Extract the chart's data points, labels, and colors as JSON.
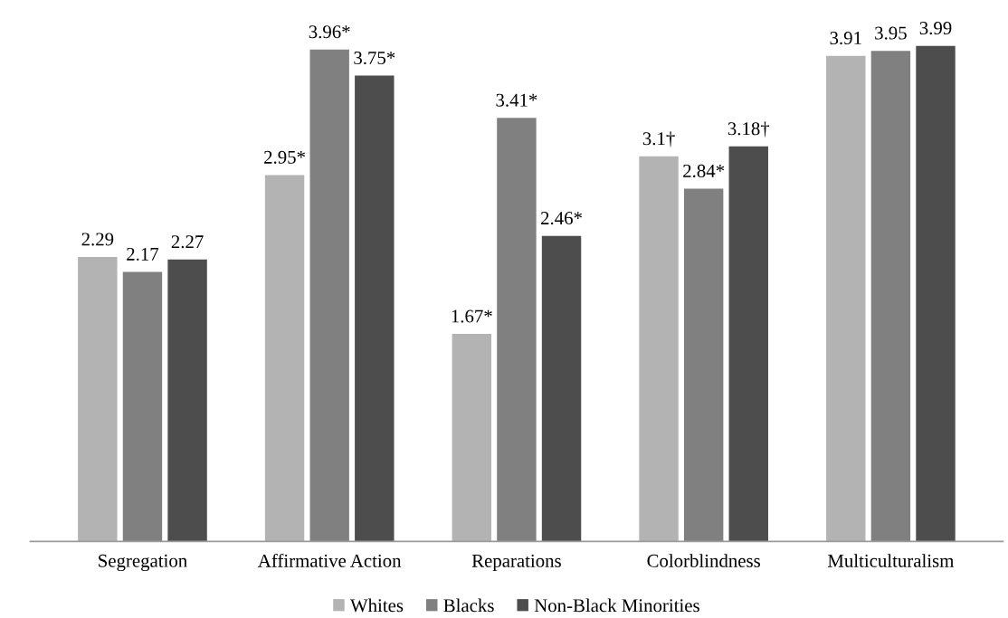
{
  "chart_data": {
    "type": "bar",
    "categories": [
      "Segregation",
      "Affirmative Action",
      "Reparations",
      "Colorblindness",
      "Multiculturalism"
    ],
    "series": [
      {
        "name": "Whites",
        "color": "#b3b3b3",
        "values": [
          2.29,
          2.95,
          1.67,
          3.1,
          3.91
        ],
        "value_labels": [
          "2.29",
          "2.95*",
          "1.67*",
          "3.1†",
          "3.91"
        ]
      },
      {
        "name": "Blacks",
        "color": "#808080",
        "values": [
          2.17,
          3.96,
          3.41,
          2.84,
          3.95
        ],
        "value_labels": [
          "2.17",
          "3.96*",
          "3.41*",
          "2.84*",
          "3.95"
        ]
      },
      {
        "name": "Non-Black Minorities",
        "color": "#4d4d4d",
        "values": [
          2.27,
          3.75,
          2.46,
          3.18,
          3.99
        ],
        "value_labels": [
          "2.27",
          "3.75*",
          "2.46*",
          "3.18†",
          "3.99"
        ]
      }
    ],
    "legend": "bottom",
    "tick_labels": "x"
  }
}
